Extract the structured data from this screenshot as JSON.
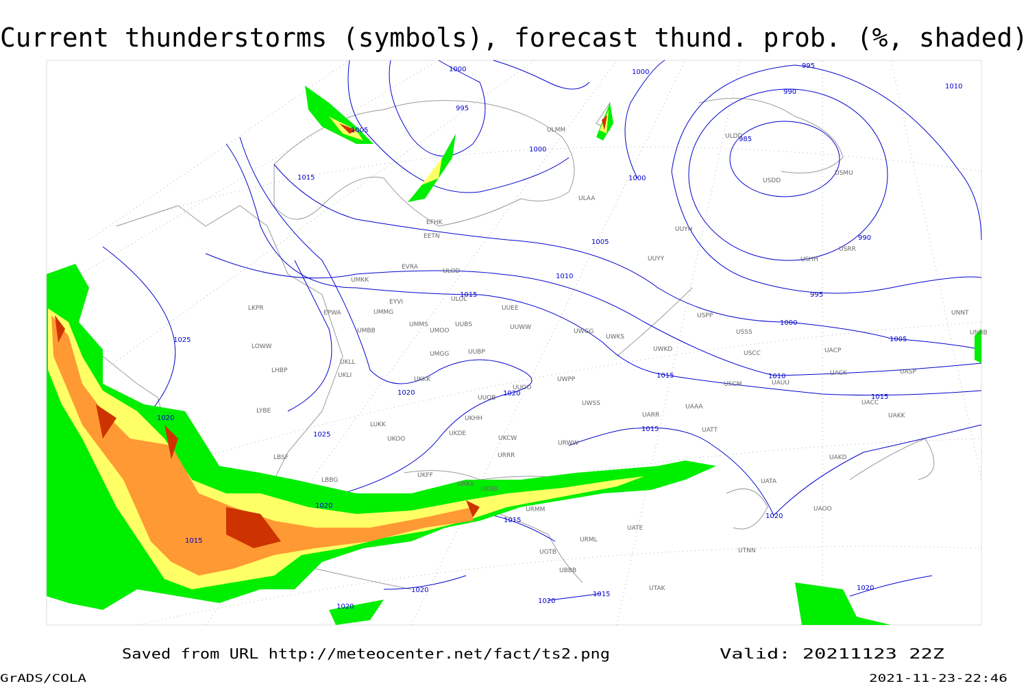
{
  "header": {
    "title": "Current thunderstorms (symbols), forecast thund. prob. (%, shaded)"
  },
  "footer": {
    "saved": "Saved from URL http://meteocenter.net/fact/ts2.png",
    "valid": "Valid: 20211123 22Z",
    "credit": "GrADS/COLA",
    "timestamp": "2021-11-23-22:46"
  },
  "isobar_labels": [
    "1000",
    "1000",
    "995",
    "990",
    "1010",
    "995",
    "1005",
    "985",
    "1000",
    "1015",
    "1000",
    "1005",
    "990",
    "1010",
    "1015",
    "995",
    "1000",
    "1005",
    "1025",
    "1010",
    "1015",
    "1020",
    "1020",
    "1015",
    "1020",
    "1025",
    "1015",
    "1020",
    "1020",
    "1015",
    "1015",
    "1020",
    "1020",
    "1020",
    "1015",
    "1020"
  ],
  "stations": [
    "ULMM",
    "EFHK",
    "EETN",
    "EVRA",
    "ULOD",
    "ULOL",
    "EPWA",
    "UMMS",
    "UUEE",
    "UUWW",
    "UMKK",
    "EYVI",
    "UMMG",
    "UMBB",
    "UMOO",
    "UUBS",
    "UKLL",
    "UKLI",
    "UMGG",
    "UUBP",
    "UKKK",
    "UUOB",
    "UUOO",
    "UKHH",
    "UKDE",
    "UKOO",
    "LUKK",
    "UKFF",
    "URKA",
    "URRR",
    "UKCW",
    "URWW",
    "UWPP",
    "UWSS",
    "UARR",
    "UATT",
    "USSS",
    "USCC",
    "USCM",
    "UAAA",
    "UACC",
    "UAKK",
    "UAKD",
    "UATA",
    "UAOO",
    "UTNN",
    "ULAA",
    "ULDD",
    "USDD",
    "USMU",
    "USRR",
    "USHH",
    "UUYH",
    "UUYY",
    "LKPR",
    "LOWW",
    "LHBP",
    "LYBE",
    "LBSF",
    "LBBG",
    "UKBB",
    "UGTB",
    "UBBB",
    "URMM",
    "URML",
    "UATE",
    "UTAK",
    "UWKD",
    "UWKS",
    "UWGG",
    "USPP",
    "UAUU",
    "UACP",
    "UACK",
    "UASP",
    "UNNT",
    "UNBB"
  ]
}
